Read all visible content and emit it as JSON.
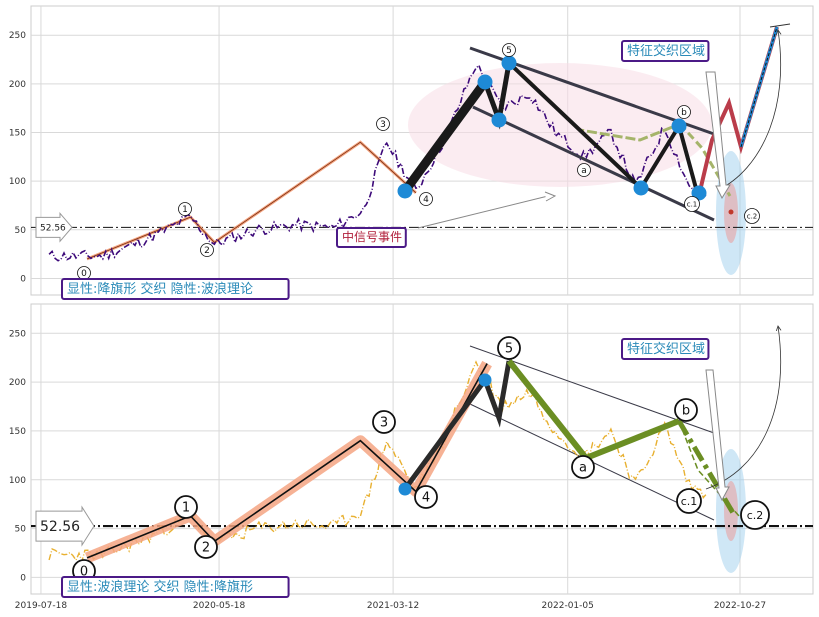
{
  "chart_data": [
    {
      "type": "line",
      "panel": "top",
      "ylim": [
        -17,
        280
      ],
      "yticks": [
        0,
        50,
        100,
        150,
        200,
        250
      ],
      "grid": true,
      "reference_line": {
        "value": 52.56,
        "label": "52.56"
      },
      "caption": "显性:降旗形 交织 隐性:波浪理论",
      "region_label": "特征交织区域",
      "event_label": "中信号事件",
      "wave_points": [
        {
          "label": "0",
          "x": "2019-10-05",
          "y": 20
        },
        {
          "label": "1",
          "x": "2020-03-30",
          "y": 63
        },
        {
          "label": "2",
          "x": "2020-05-10",
          "y": 37
        },
        {
          "label": "3",
          "x": "2021-01-15",
          "y": 140
        },
        {
          "label": "4",
          "x": "2021-04-20",
          "y": 88
        },
        {
          "label": "5",
          "x": "2021-08-20",
          "y": 219
        },
        {
          "label": "a",
          "x": "2022-02-15",
          "y": 120
        },
        {
          "label": "b",
          "x": "2022-07-01",
          "y": 157
        },
        {
          "label": "c.1",
          "x": "2022-08-30",
          "y": 80
        },
        {
          "label": "c.2",
          "x": "2022-11-01",
          "y": 65
        }
      ],
      "price_series": [
        {
          "x": "2019-08-01",
          "y": 23
        },
        {
          "x": "2019-11-01",
          "y": 23
        },
        {
          "x": "2020-01-15",
          "y": 40
        },
        {
          "x": "2020-03-30",
          "y": 63
        },
        {
          "x": "2020-05-10",
          "y": 35
        },
        {
          "x": "2020-07-20",
          "y": 50
        },
        {
          "x": "2020-10-01",
          "y": 55
        },
        {
          "x": "2020-12-01",
          "y": 52
        },
        {
          "x": "2021-01-20",
          "y": 70
        },
        {
          "x": "2021-03-01",
          "y": 140
        },
        {
          "x": "2021-04-20",
          "y": 90
        },
        {
          "x": "2021-06-10",
          "y": 145
        },
        {
          "x": "2021-08-01",
          "y": 220
        },
        {
          "x": "2021-09-15",
          "y": 175
        },
        {
          "x": "2021-11-01",
          "y": 190
        },
        {
          "x": "2021-12-15",
          "y": 150
        },
        {
          "x": "2022-02-01",
          "y": 125
        },
        {
          "x": "2022-03-20",
          "y": 150
        },
        {
          "x": "2022-05-01",
          "y": 95
        },
        {
          "x": "2022-06-20",
          "y": 155
        },
        {
          "x": "2022-08-01",
          "y": 95
        },
        {
          "x": "2022-08-30",
          "y": 85
        }
      ]
    },
    {
      "type": "line",
      "panel": "bottom",
      "ylim": [
        -17,
        280
      ],
      "yticks": [
        0,
        50,
        100,
        150,
        200,
        250
      ],
      "xticks": [
        "2019-07-18",
        "2020-05-18",
        "2021-03-12",
        "2022-01-05",
        "2022-10-27"
      ],
      "grid": true,
      "reference_line": {
        "value": 52.56,
        "label": "52.56"
      },
      "caption": "显性:波浪理论 交织 隐性:降旗形",
      "region_label": "特征交织区域",
      "wave_points": [
        {
          "label": "0",
          "x": "2019-10-05",
          "y": 20
        },
        {
          "label": "1",
          "x": "2020-03-30",
          "y": 63
        },
        {
          "label": "2",
          "x": "2020-05-10",
          "y": 37
        },
        {
          "label": "3",
          "x": "2021-01-15",
          "y": 140
        },
        {
          "label": "4",
          "x": "2021-04-20",
          "y": 88
        },
        {
          "label": "5",
          "x": "2021-08-20",
          "y": 219
        },
        {
          "label": "a",
          "x": "2022-02-15",
          "y": 120
        },
        {
          "label": "b",
          "x": "2022-07-01",
          "y": 157
        },
        {
          "label": "c.1",
          "x": "2022-08-30",
          "y": 80
        },
        {
          "label": "c.2",
          "x": "2022-11-01",
          "y": 65
        }
      ]
    }
  ],
  "colors": {
    "top_price": "#3d0a7a",
    "bottom_price": "#e8b030",
    "blue_marker": "#1e8ad6",
    "wave_fill": "#f4a582",
    "green": "#6b8e23",
    "label_border": "#4b1a87",
    "label_text": "#2a8ab8",
    "event_text": "#b01e3a"
  }
}
